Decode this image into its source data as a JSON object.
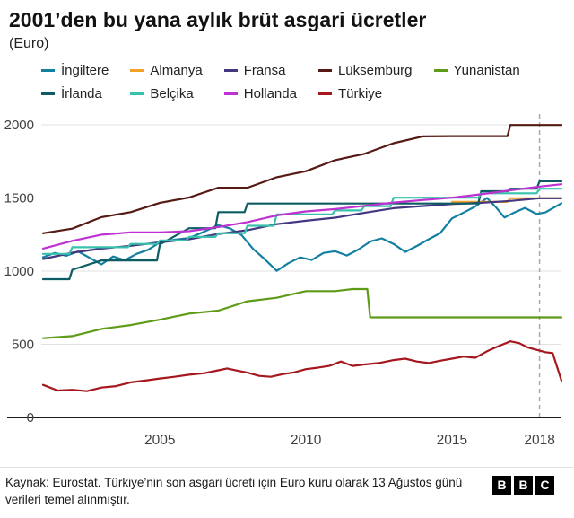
{
  "chart_data": {
    "type": "line",
    "title": "2001’den bu yana aylık brüt asgari ücretler",
    "subtitle": "(Euro)",
    "ylabel": "Euro",
    "x_range": [
      2001,
      2018.75
    ],
    "ylim": [
      0,
      2000
    ],
    "yticks": [
      0,
      500,
      1000,
      1500,
      2000
    ],
    "xticks": [
      2005,
      2010,
      2015,
      2018
    ],
    "grid": true,
    "legend_position": "top",
    "marker_line_x": 2018,
    "marker_line_style": "dashed",
    "series": [
      {
        "name": "İngiltere",
        "color": "#1380A1",
        "points": [
          [
            2001,
            1095
          ],
          [
            2001.4,
            1124
          ],
          [
            2001.8,
            1105
          ],
          [
            2002.2,
            1135
          ],
          [
            2002.6,
            1090
          ],
          [
            2003,
            1046
          ],
          [
            2003.4,
            1100
          ],
          [
            2003.8,
            1074
          ],
          [
            2004.2,
            1118
          ],
          [
            2004.6,
            1146
          ],
          [
            2005,
            1197
          ],
          [
            2005.5,
            1215
          ],
          [
            2006,
            1226
          ],
          [
            2006.5,
            1268
          ],
          [
            2007,
            1314
          ],
          [
            2007.4,
            1292
          ],
          [
            2007.8,
            1246
          ],
          [
            2008.2,
            1150
          ],
          [
            2008.6,
            1080
          ],
          [
            2009,
            1002
          ],
          [
            2009.4,
            1054
          ],
          [
            2009.8,
            1094
          ],
          [
            2010.2,
            1076
          ],
          [
            2010.6,
            1124
          ],
          [
            2011,
            1136
          ],
          [
            2011.4,
            1107
          ],
          [
            2011.8,
            1148
          ],
          [
            2012.2,
            1202
          ],
          [
            2012.6,
            1224
          ],
          [
            2013,
            1186
          ],
          [
            2013.4,
            1131
          ],
          [
            2013.8,
            1172
          ],
          [
            2014.2,
            1217
          ],
          [
            2014.6,
            1260
          ],
          [
            2015,
            1360
          ],
          [
            2015.4,
            1400
          ],
          [
            2015.8,
            1442
          ],
          [
            2016.2,
            1500
          ],
          [
            2016.5,
            1438
          ],
          [
            2016.8,
            1366
          ],
          [
            2017.1,
            1397
          ],
          [
            2017.5,
            1432
          ],
          [
            2017.9,
            1390
          ],
          [
            2018.2,
            1401
          ],
          [
            2018.75,
            1464
          ]
        ]
      },
      {
        "name": "Almanya",
        "color": "#F2A229",
        "points": [
          [
            2015,
            1473
          ],
          [
            2016.9,
            1473
          ],
          [
            2017,
            1498
          ],
          [
            2018.75,
            1498
          ]
        ]
      },
      {
        "name": "Fransa",
        "color": "#453681",
        "points": [
          [
            2001,
            1083
          ],
          [
            2002,
            1126
          ],
          [
            2003,
            1154
          ],
          [
            2004,
            1173
          ],
          [
            2005,
            1197
          ],
          [
            2006,
            1218
          ],
          [
            2007,
            1254
          ],
          [
            2008,
            1280
          ],
          [
            2009,
            1321
          ],
          [
            2010,
            1344
          ],
          [
            2011,
            1365
          ],
          [
            2012,
            1398
          ],
          [
            2013,
            1430
          ],
          [
            2014,
            1445
          ],
          [
            2015,
            1458
          ],
          [
            2016,
            1467
          ],
          [
            2017,
            1480
          ],
          [
            2018,
            1498
          ],
          [
            2018.75,
            1498
          ]
        ]
      },
      {
        "name": "Lüksemburg",
        "color": "#551A14",
        "points": [
          [
            2001,
            1259
          ],
          [
            2002,
            1290
          ],
          [
            2003,
            1369
          ],
          [
            2004,
            1403
          ],
          [
            2005,
            1467
          ],
          [
            2006,
            1503
          ],
          [
            2007,
            1570
          ],
          [
            2008,
            1570
          ],
          [
            2009,
            1642
          ],
          [
            2010,
            1683
          ],
          [
            2011,
            1758
          ],
          [
            2012,
            1801
          ],
          [
            2013,
            1874
          ],
          [
            2014,
            1921
          ],
          [
            2015,
            1923
          ],
          [
            2016.9,
            1923
          ],
          [
            2017,
            1999
          ],
          [
            2018.75,
            1999
          ]
        ]
      },
      {
        "name": "Yunanistan",
        "color": "#5E9B17",
        "points": [
          [
            2001,
            542
          ],
          [
            2002,
            556
          ],
          [
            2003,
            605
          ],
          [
            2004,
            631
          ],
          [
            2005,
            668
          ],
          [
            2006,
            710
          ],
          [
            2007,
            730
          ],
          [
            2008,
            794
          ],
          [
            2009,
            818
          ],
          [
            2010,
            863
          ],
          [
            2011,
            863
          ],
          [
            2011.6,
            877
          ],
          [
            2012.1,
            877
          ],
          [
            2012.2,
            684
          ],
          [
            2018.75,
            684
          ]
        ]
      },
      {
        "name": "İrlanda",
        "color": "#0D5C63",
        "points": [
          [
            2001,
            945
          ],
          [
            2001.9,
            945
          ],
          [
            2002,
            1009
          ],
          [
            2003,
            1073
          ],
          [
            2004.9,
            1073
          ],
          [
            2005,
            1183
          ],
          [
            2006,
            1293
          ],
          [
            2006.9,
            1293
          ],
          [
            2007,
            1403
          ],
          [
            2007.9,
            1403
          ],
          [
            2008,
            1462
          ],
          [
            2015.9,
            1462
          ],
          [
            2016,
            1546
          ],
          [
            2016.9,
            1546
          ],
          [
            2017,
            1563
          ],
          [
            2017.9,
            1563
          ],
          [
            2018,
            1614
          ],
          [
            2018.75,
            1614
          ]
        ]
      },
      {
        "name": "Belçika",
        "color": "#38C1AC",
        "points": [
          [
            2001,
            1118
          ],
          [
            2001.9,
            1118
          ],
          [
            2002,
            1163
          ],
          [
            2003.9,
            1163
          ],
          [
            2004,
            1186
          ],
          [
            2004.9,
            1186
          ],
          [
            2005,
            1210
          ],
          [
            2005.9,
            1210
          ],
          [
            2006,
            1234
          ],
          [
            2006.9,
            1234
          ],
          [
            2007,
            1259
          ],
          [
            2007.9,
            1259
          ],
          [
            2008,
            1310
          ],
          [
            2008.9,
            1310
          ],
          [
            2009,
            1388
          ],
          [
            2010.9,
            1388
          ],
          [
            2011,
            1415
          ],
          [
            2011.9,
            1415
          ],
          [
            2012,
            1444
          ],
          [
            2012.9,
            1444
          ],
          [
            2013,
            1502
          ],
          [
            2015.9,
            1502
          ],
          [
            2016,
            1532
          ],
          [
            2017.9,
            1532
          ],
          [
            2018,
            1563
          ],
          [
            2018.75,
            1563
          ]
        ]
      },
      {
        "name": "Hollanda",
        "color": "#BD32D0",
        "points": [
          [
            2001,
            1154
          ],
          [
            2002,
            1207
          ],
          [
            2003,
            1249
          ],
          [
            2004,
            1265
          ],
          [
            2005,
            1265
          ],
          [
            2006,
            1273
          ],
          [
            2007,
            1301
          ],
          [
            2008,
            1335
          ],
          [
            2009,
            1381
          ],
          [
            2010,
            1408
          ],
          [
            2011,
            1424
          ],
          [
            2012,
            1446
          ],
          [
            2013,
            1469
          ],
          [
            2014,
            1486
          ],
          [
            2015,
            1502
          ],
          [
            2016,
            1525
          ],
          [
            2017,
            1552
          ],
          [
            2018,
            1578
          ],
          [
            2018.75,
            1594
          ]
        ]
      },
      {
        "name": "Türkiye",
        "color": "#A5171D",
        "points": [
          [
            2001,
            223
          ],
          [
            2001.5,
            184
          ],
          [
            2002,
            189
          ],
          [
            2002.5,
            180
          ],
          [
            2003,
            204
          ],
          [
            2003.5,
            214
          ],
          [
            2004,
            240
          ],
          [
            2004.5,
            252
          ],
          [
            2005,
            266
          ],
          [
            2005.5,
            278
          ],
          [
            2006,
            292
          ],
          [
            2006.5,
            302
          ],
          [
            2007,
            322
          ],
          [
            2007.3,
            335
          ],
          [
            2007.7,
            318
          ],
          [
            2008,
            306
          ],
          [
            2008.4,
            284
          ],
          [
            2008.8,
            278
          ],
          [
            2009.2,
            296
          ],
          [
            2009.6,
            308
          ],
          [
            2010,
            330
          ],
          [
            2010.4,
            340
          ],
          [
            2010.8,
            352
          ],
          [
            2011.2,
            382
          ],
          [
            2011.6,
            352
          ],
          [
            2012,
            362
          ],
          [
            2012.5,
            372
          ],
          [
            2013,
            392
          ],
          [
            2013.4,
            402
          ],
          [
            2013.8,
            382
          ],
          [
            2014.2,
            372
          ],
          [
            2014.6,
            388
          ],
          [
            2015,
            402
          ],
          [
            2015.4,
            416
          ],
          [
            2015.8,
            408
          ],
          [
            2016.2,
            452
          ],
          [
            2016.6,
            488
          ],
          [
            2017,
            520
          ],
          [
            2017.3,
            508
          ],
          [
            2017.6,
            478
          ],
          [
            2017.9,
            462
          ],
          [
            2018.2,
            446
          ],
          [
            2018.45,
            440
          ],
          [
            2018.75,
            252
          ]
        ]
      }
    ]
  },
  "footer": {
    "source": "Kaynak: Eurostat. Türkiye’nin son asgari ücreti için Euro kuru olarak 13 Ağustos günü verileri temel alınmıştır.",
    "logo_letters": [
      "B",
      "B",
      "C"
    ]
  }
}
